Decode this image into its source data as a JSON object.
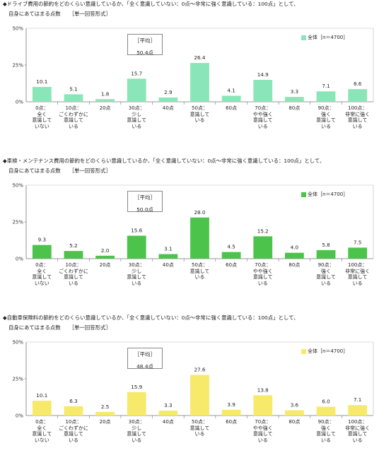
{
  "chart_data": [
    {
      "type": "bar",
      "question_line1": "◆ドライブ費用の節約をどのくらい意識しているか、「全く意識していない：0点～非常に強く意識している：100点」として、",
      "question_line2": "自身にあてはまる点数",
      "question_format": "［単一回答形式］",
      "categories": [
        [
          "0点：",
          "全く",
          "意識して",
          "いない"
        ],
        [
          "10点：",
          "ごくわずかに",
          "意識して",
          "いる"
        ],
        [
          "20点"
        ],
        [
          "30点：",
          "少し",
          "意識して",
          "いる"
        ],
        [
          "40点"
        ],
        [
          "50点：",
          "意識して",
          "いる"
        ],
        [
          "60点"
        ],
        [
          "70点：",
          "やや強く",
          "意識して",
          "いる"
        ],
        [
          "80点"
        ],
        [
          "90点：",
          "強く",
          "意識して",
          "いる"
        ],
        [
          "100点：",
          "非常に強く",
          "意識して",
          "いる"
        ]
      ],
      "values": [
        10.1,
        5.1,
        1.8,
        15.7,
        2.9,
        26.4,
        4.1,
        14.9,
        3.3,
        7.1,
        8.6
      ],
      "value_labels": [
        "10.1",
        "5.1",
        "1.8",
        "15.7",
        "2.9",
        "26.4",
        "4.1",
        "14.9",
        "3.3",
        "7.1",
        "8.6"
      ],
      "y_ticks": [
        "0%",
        "25%",
        "50%"
      ],
      "ylim": [
        0,
        50
      ],
      "legend": "全体［n＝4700］",
      "average_title": "［平均］",
      "average_value": "50.4点",
      "color": "#8ae6b8"
    },
    {
      "type": "bar",
      "question_line1": "◆車検・メンテナンス費用の節約をどのくらい意識しているか、「全く意識していない：0点～非常に強く意識している：100点」として、",
      "question_line2": "自身にあてはまる点数",
      "question_format": "［単一回答形式］",
      "categories": [
        [
          "0点：",
          "全く",
          "意識して",
          "いない"
        ],
        [
          "10点：",
          "ごくわずかに",
          "意識して",
          "いる"
        ],
        [
          "20点"
        ],
        [
          "30点：",
          "少し",
          "意識して",
          "いる"
        ],
        [
          "40点"
        ],
        [
          "50点：",
          "意識して",
          "いる"
        ],
        [
          "60点"
        ],
        [
          "70点：",
          "やや強く",
          "意識して",
          "いる"
        ],
        [
          "80点"
        ],
        [
          "90点：",
          "強く",
          "意識して",
          "いる"
        ],
        [
          "100点：",
          "非常に強く",
          "意識して",
          "いる"
        ]
      ],
      "values": [
        9.3,
        5.2,
        2.0,
        15.6,
        3.1,
        28.0,
        4.5,
        15.2,
        4.0,
        5.8,
        7.5
      ],
      "value_labels": [
        "9.3",
        "5.2",
        "2.0",
        "15.6",
        "3.1",
        "28.0",
        "4.5",
        "15.2",
        "4.0",
        "5.8",
        "7.5"
      ],
      "y_ticks": [
        "0%",
        "25%",
        "50%"
      ],
      "ylim": [
        0,
        50
      ],
      "legend": "全体［n＝4700］",
      "average_title": "［平均］",
      "average_value": "50.0点",
      "color": "#4cc44c"
    },
    {
      "type": "bar",
      "question_line1": "◆自動車保険料の節約をどのくらい意識しているか、「全く意識していない：0点～非常に強く意識している：100点」として、",
      "question_line2": "自身にあてはまる点数",
      "question_format": "［単一回答形式］",
      "categories": [
        [
          "0点：",
          "全く",
          "意識して",
          "いない"
        ],
        [
          "10点：",
          "ごくわずかに",
          "意識して",
          "いる"
        ],
        [
          "20点"
        ],
        [
          "30点：",
          "少し",
          "意識して",
          "いる"
        ],
        [
          "40点"
        ],
        [
          "50点：",
          "意識して",
          "いる"
        ],
        [
          "60点"
        ],
        [
          "70点：",
          "やや強く",
          "意識して",
          "いる"
        ],
        [
          "80点"
        ],
        [
          "90点：",
          "強く",
          "意識して",
          "いる"
        ],
        [
          "100点：",
          "非常に強く",
          "意識して",
          "いる"
        ]
      ],
      "values": [
        10.1,
        6.3,
        2.5,
        15.9,
        3.3,
        27.6,
        3.9,
        13.8,
        3.6,
        6.0,
        7.1
      ],
      "value_labels": [
        "10.1",
        "6.3",
        "2.5",
        "15.9",
        "3.3",
        "27.6",
        "3.9",
        "13.8",
        "3.6",
        "6.0",
        "7.1"
      ],
      "y_ticks": [
        "0%",
        "25%",
        "50%"
      ],
      "ylim": [
        0,
        50
      ],
      "legend": "全体［n＝4700］",
      "average_title": "［平均］",
      "average_value": "48.4点",
      "color": "#f7e96a"
    }
  ]
}
